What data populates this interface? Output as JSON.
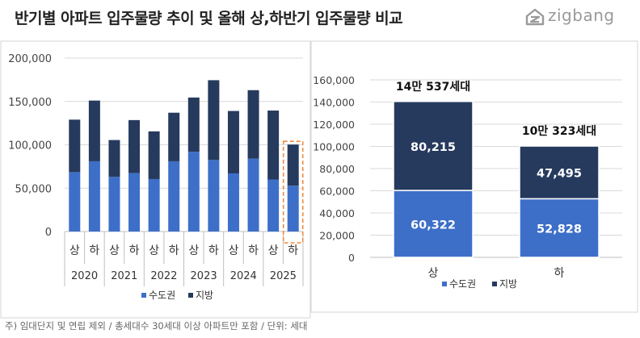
{
  "title": "반기별 아파트 입주물량 추이 및 올해 상,하반기 입주물량 비교",
  "logo_text": "zigbang",
  "footnote": "주) 임대단지 및 연립 제외 / 총세대수 30세대 이상 아파트만 포함 / 단위: 세대",
  "colors": {
    "capital": "#3d6fc9",
    "region": "#263a5e",
    "highlight_box": "#f08a3e"
  },
  "chart_data": [
    {
      "type": "bar",
      "stacked": true,
      "categories": [
        "상",
        "하",
        "상",
        "하",
        "상",
        "하",
        "상",
        "하",
        "상",
        "하",
        "상",
        "하"
      ],
      "years": [
        "2020",
        "2021",
        "2022",
        "2023",
        "2024",
        "2025"
      ],
      "series": [
        {
          "name": "수도권",
          "values": [
            68500,
            81000,
            63000,
            67500,
            60500,
            81000,
            92000,
            82500,
            67000,
            84000,
            60000,
            52828
          ]
        },
        {
          "name": "지방",
          "values": [
            60500,
            70000,
            42500,
            61000,
            55000,
            56000,
            62500,
            92000,
            72000,
            79000,
            79500,
            47495
          ]
        }
      ],
      "ylim": [
        0,
        200000
      ],
      "yticks": [
        "0",
        "50,000",
        "100,000",
        "150,000",
        "200,000"
      ],
      "highlight": "2025 하",
      "legend": "bottom"
    },
    {
      "type": "bar",
      "stacked": true,
      "categories": [
        "상",
        "하"
      ],
      "series": [
        {
          "name": "수도권",
          "values": [
            60322,
            52828
          ],
          "labels": [
            "60,322",
            "52,828"
          ]
        },
        {
          "name": "지방",
          "values": [
            80215,
            47495
          ],
          "labels": [
            "80,215",
            "47,495"
          ]
        }
      ],
      "totals": [
        "14만 537세대",
        "10만 323세대"
      ],
      "ylim": [
        0,
        160000
      ],
      "yticks": [
        "0",
        "20,000",
        "40,000",
        "60,000",
        "80,000",
        "100,000",
        "120,000",
        "140,000",
        "160,000"
      ],
      "legend": "bottom"
    }
  ]
}
